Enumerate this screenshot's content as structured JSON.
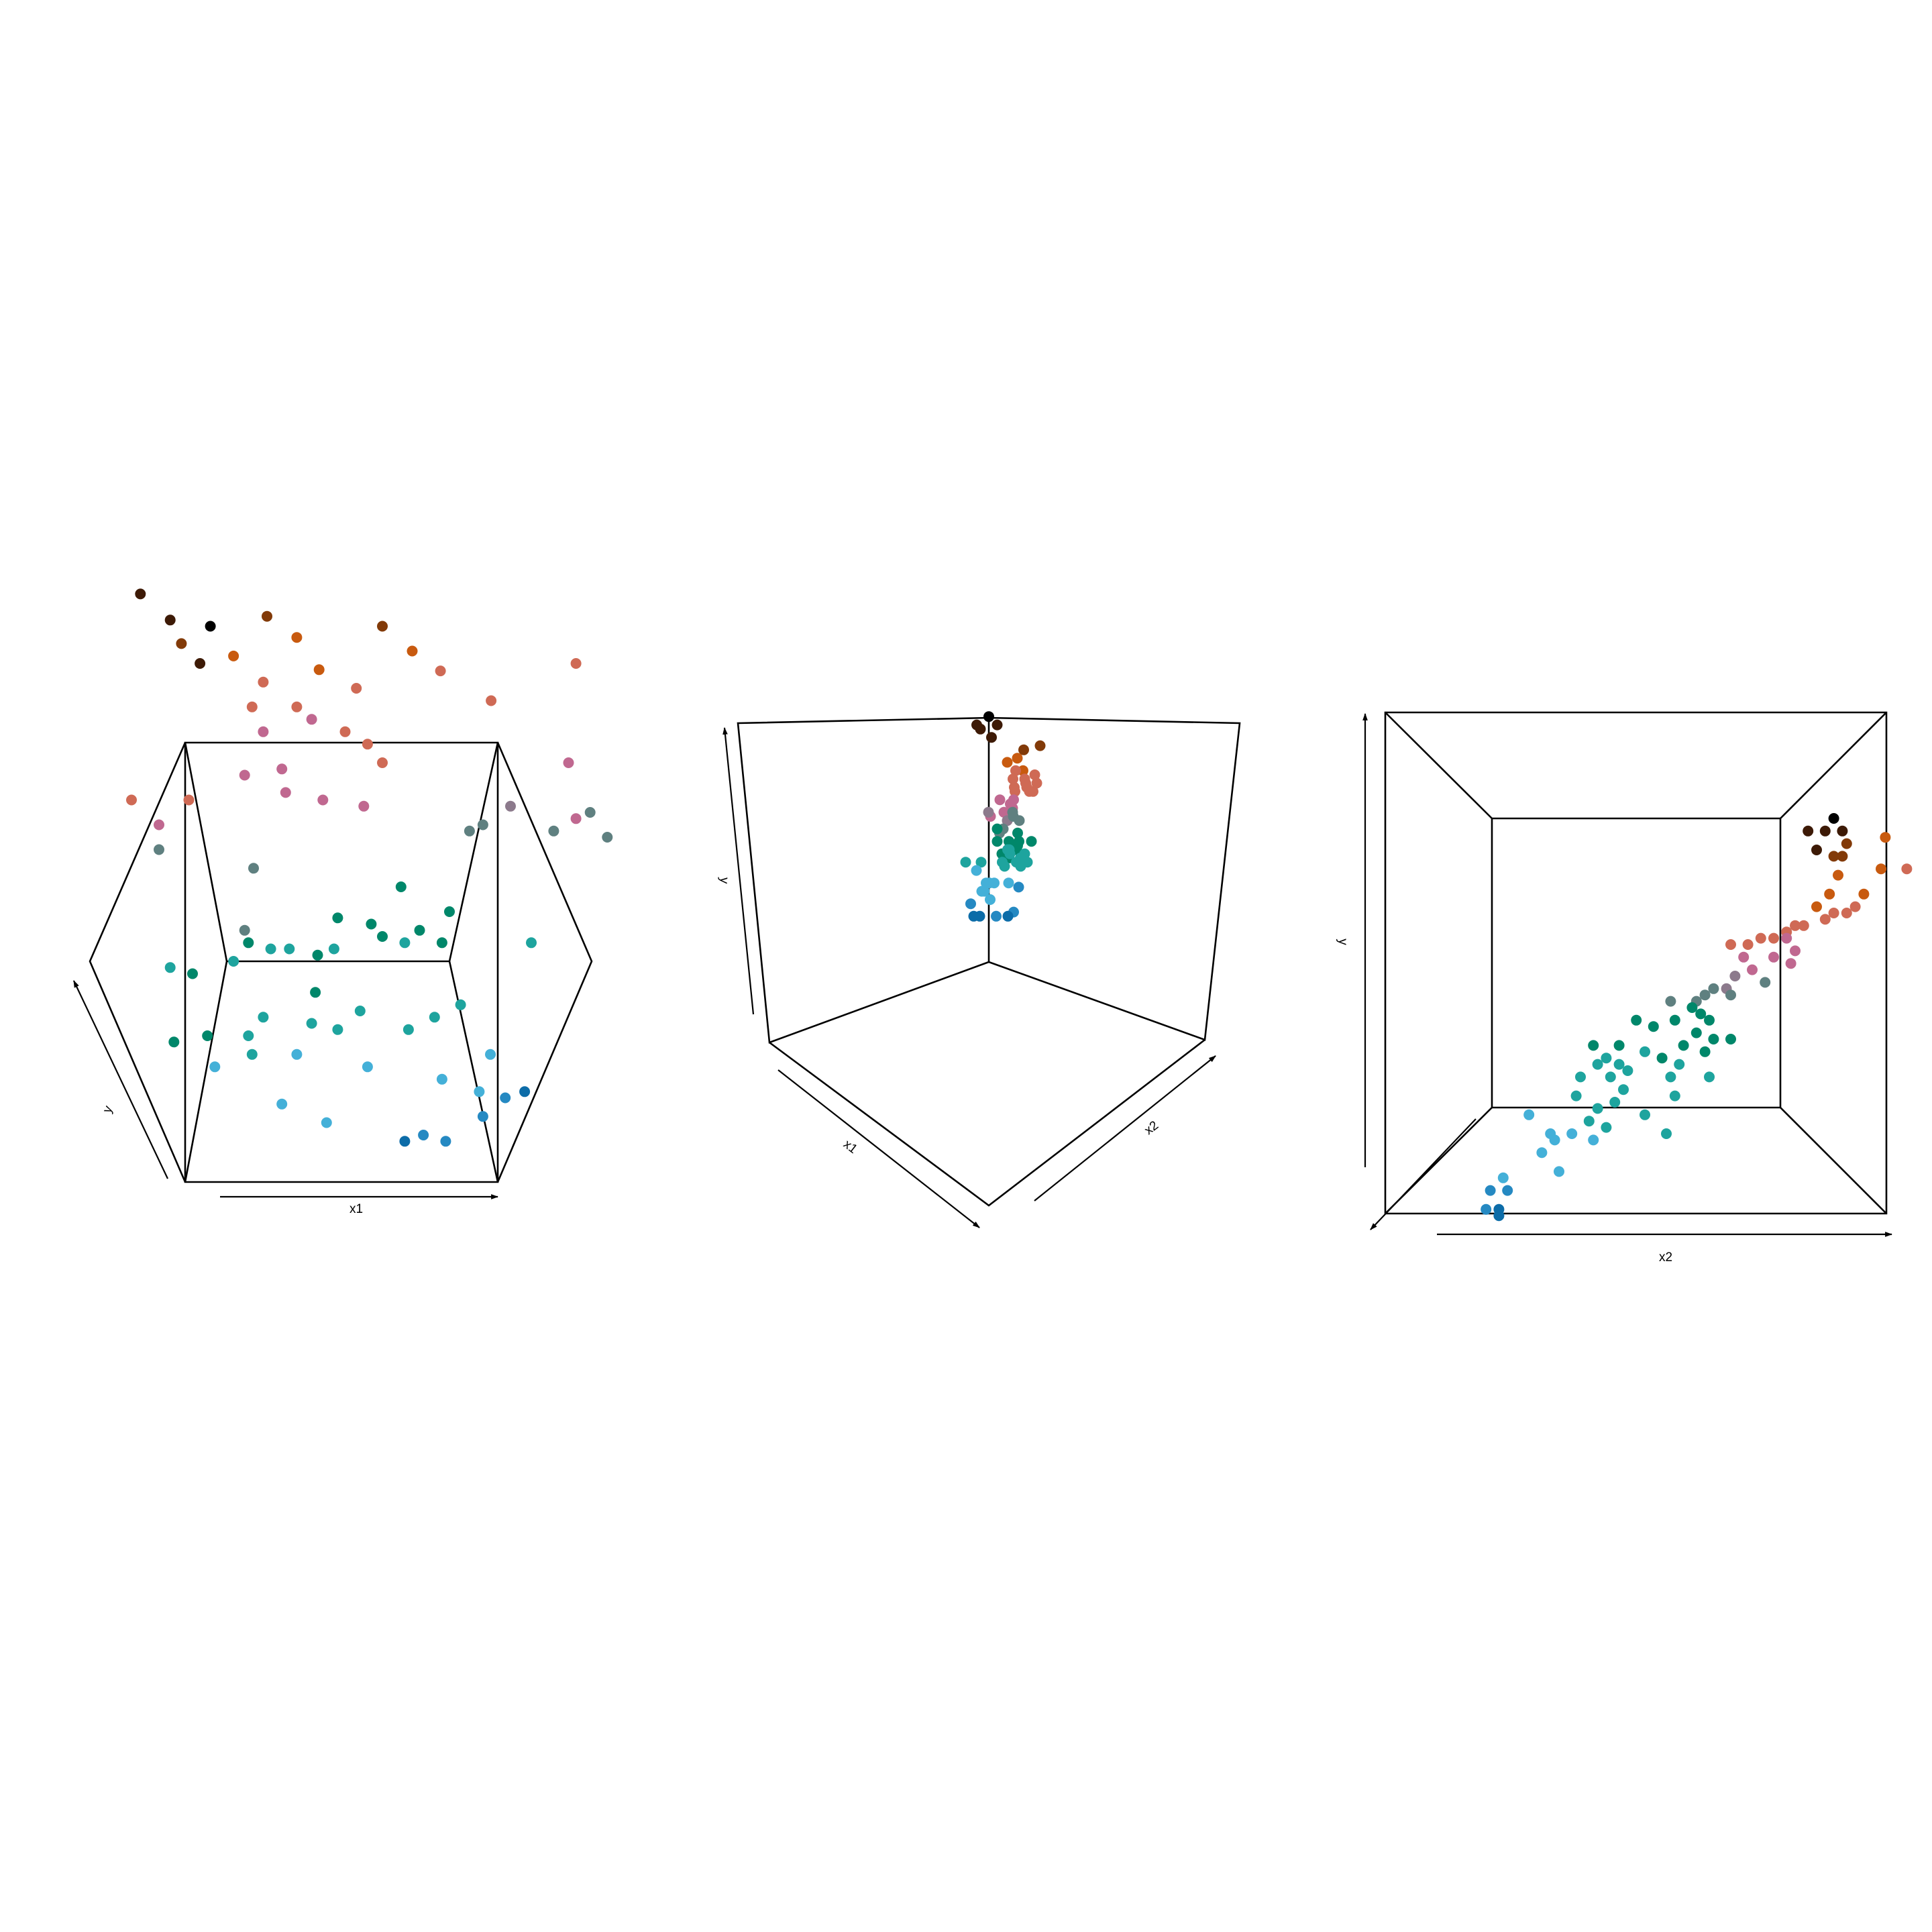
{
  "palette": {
    "1": "#000000",
    "2": "#3d1a06",
    "3": "#823a08",
    "4": "#c85a0f",
    "5": "#cf6a55",
    "6": "#c06890",
    "7": "#8c7a8c",
    "8": "#5f8080",
    "9": "#00876a",
    "10": "#1ea49e",
    "11": "#44b0d8",
    "12": "#2589c2",
    "13": "#0c6ca8"
  },
  "chart_data": [
    {
      "type": "scatter",
      "projection": "3d",
      "view": "front, x1 horizontal, y tilted",
      "axis_labels": {
        "x1": "x1",
        "y": "y"
      },
      "points": [
        [
          -2.7,
          2.96,
          2
        ],
        [
          -1.76,
          2.7,
          1
        ],
        [
          -2.3,
          2.75,
          2
        ],
        [
          -2.15,
          2.56,
          3
        ],
        [
          -1.9,
          2.4,
          2
        ],
        [
          -1.0,
          2.78,
          3
        ],
        [
          -0.6,
          2.61,
          4
        ],
        [
          -1.45,
          2.46,
          4
        ],
        [
          -1.05,
          2.25,
          5
        ],
        [
          -0.3,
          2.35,
          4
        ],
        [
          0.2,
          2.2,
          5
        ],
        [
          0.55,
          2.7,
          3
        ],
        [
          0.95,
          2.5,
          4
        ],
        [
          1.33,
          2.34,
          5
        ],
        [
          2.01,
          2.1,
          5
        ],
        [
          3.15,
          2.4,
          5
        ],
        [
          -1.2,
          2.05,
          5
        ],
        [
          -0.6,
          2.05,
          5
        ],
        [
          -1.05,
          1.85,
          6
        ],
        [
          -0.4,
          1.95,
          6
        ],
        [
          0.05,
          1.85,
          5
        ],
        [
          0.35,
          1.75,
          5
        ],
        [
          -0.8,
          1.55,
          6
        ],
        [
          -1.3,
          1.5,
          6
        ],
        [
          -2.05,
          1.3,
          5
        ],
        [
          -0.75,
          1.36,
          6
        ],
        [
          -0.25,
          1.3,
          6
        ],
        [
          0.3,
          1.25,
          6
        ],
        [
          0.55,
          1.6,
          5
        ],
        [
          -2.45,
          1.1,
          6
        ],
        [
          -2.82,
          1.3,
          5
        ],
        [
          2.27,
          1.25,
          7
        ],
        [
          1.72,
          1.05,
          8
        ],
        [
          3.05,
          1.6,
          6
        ],
        [
          1.9,
          1.1,
          8
        ],
        [
          2.85,
          1.05,
          8
        ],
        [
          3.34,
          1.2,
          8
        ],
        [
          3.57,
          1.0,
          8
        ],
        [
          3.15,
          1.15,
          6
        ],
        [
          -2.45,
          0.9,
          8
        ],
        [
          -1.18,
          0.75,
          8
        ],
        [
          0.8,
          0.6,
          9
        ],
        [
          -1.25,
          0.15,
          9
        ],
        [
          -0.05,
          0.35,
          9
        ],
        [
          0.4,
          0.3,
          9
        ],
        [
          -1.3,
          0.25,
          8
        ],
        [
          -0.32,
          0.05,
          9
        ],
        [
          0.55,
          0.2,
          9
        ],
        [
          1.05,
          0.25,
          9
        ],
        [
          1.45,
          0.4,
          9
        ],
        [
          -2.3,
          -0.05,
          10
        ],
        [
          -1.45,
          0.0,
          10
        ],
        [
          -0.95,
          0.1,
          10
        ],
        [
          -0.7,
          0.1,
          10
        ],
        [
          -0.1,
          0.1,
          10
        ],
        [
          0.85,
          0.15,
          10
        ],
        [
          1.35,
          0.15,
          9
        ],
        [
          2.55,
          0.15,
          10
        ],
        [
          -2.0,
          -0.1,
          9
        ],
        [
          -0.4,
          -0.5,
          10
        ],
        [
          0.25,
          -0.4,
          10
        ],
        [
          -1.05,
          -0.45,
          10
        ],
        [
          -0.35,
          -0.25,
          9
        ],
        [
          0.9,
          -0.55,
          10
        ],
        [
          1.25,
          -0.45,
          10
        ],
        [
          -2.25,
          -0.65,
          9
        ],
        [
          -1.8,
          -0.6,
          9
        ],
        [
          -1.2,
          -0.75,
          10
        ],
        [
          -1.25,
          -0.6,
          10
        ],
        [
          -0.05,
          -0.55,
          10
        ],
        [
          1.6,
          -0.35,
          10
        ],
        [
          2.0,
          -0.75,
          11
        ],
        [
          -1.7,
          -0.85,
          11
        ],
        [
          -0.6,
          -0.75,
          11
        ],
        [
          0.35,
          -0.85,
          11
        ],
        [
          1.35,
          -0.95,
          11
        ],
        [
          1.85,
          -1.05,
          11
        ],
        [
          -0.8,
          -1.15,
          11
        ],
        [
          -0.2,
          -1.3,
          11
        ],
        [
          2.2,
          -1.1,
          12
        ],
        [
          2.46,
          -1.05,
          13
        ],
        [
          0.85,
          -1.45,
          13
        ],
        [
          1.1,
          -1.4,
          12
        ],
        [
          1.4,
          -1.45,
          12
        ],
        [
          1.9,
          -1.25,
          12
        ]
      ]
    },
    {
      "type": "scatter",
      "projection": "3d",
      "view": "corner, x1 and x2 receding, y vertical",
      "axis_labels": {
        "x1": "x1",
        "x2": "x2",
        "y": "y"
      },
      "points": [
        [
          0,
          0,
          2.95,
          1
        ],
        [
          -0.1,
          0.05,
          2.85,
          2
        ],
        [
          0.05,
          -0.05,
          2.85,
          2
        ],
        [
          -0.05,
          0.05,
          2.8,
          2
        ],
        [
          0.1,
          0.05,
          2.7,
          2
        ],
        [
          0.6,
          0.1,
          2.55,
          3
        ],
        [
          0.95,
          0.2,
          2.6,
          3
        ],
        [
          0.45,
          0.05,
          2.45,
          4
        ],
        [
          0.25,
          0.0,
          2.4,
          4
        ],
        [
          1.1,
          0.5,
          2.3,
          4
        ],
        [
          0.3,
          -0.05,
          2.3,
          5
        ],
        [
          0.55,
          0.05,
          2.2,
          5
        ],
        [
          0.75,
          0.1,
          2.25,
          5
        ],
        [
          0.2,
          -0.1,
          2.2,
          5
        ],
        [
          0.45,
          -0.05,
          2.1,
          5
        ],
        [
          0.6,
          0.0,
          2.05,
          5
        ],
        [
          1.35,
          0.55,
          2.15,
          5
        ],
        [
          1.25,
          0.55,
          2.05,
          5
        ],
        [
          1.9,
          1.1,
          2.15,
          5
        ],
        [
          -0.8,
          -0.9,
          2.1,
          5
        ],
        [
          -0.6,
          -0.75,
          2.05,
          5
        ],
        [
          -1.0,
          -1.05,
          1.95,
          6
        ],
        [
          -0.55,
          -0.55,
          1.95,
          6
        ],
        [
          0.1,
          -0.15,
          1.9,
          6
        ],
        [
          0.45,
          0.1,
          1.85,
          6
        ],
        [
          1.35,
          0.9,
          1.8,
          6
        ],
        [
          1.55,
          1.2,
          1.75,
          6
        ],
        [
          1.65,
          1.3,
          1.8,
          7
        ],
        [
          1.8,
          1.3,
          1.55,
          8
        ],
        [
          0.95,
          0.55,
          1.7,
          7
        ],
        [
          1.15,
          0.75,
          1.6,
          8
        ],
        [
          -0.75,
          -0.85,
          1.75,
          8
        ],
        [
          -1.05,
          -1.15,
          1.7,
          8
        ],
        [
          -0.25,
          -0.45,
          1.8,
          8
        ],
        [
          0.05,
          -0.05,
          1.6,
          9
        ],
        [
          -0.5,
          -0.7,
          1.55,
          9
        ],
        [
          -0.8,
          -0.95,
          1.45,
          9
        ],
        [
          -1.65,
          -1.75,
          1.45,
          9
        ],
        [
          -1.2,
          -1.25,
          1.4,
          9
        ],
        [
          -1.0,
          -1.05,
          1.4,
          9
        ],
        [
          0.05,
          -0.05,
          1.45,
          9
        ],
        [
          0.55,
          0.15,
          1.4,
          9
        ],
        [
          0.75,
          0.3,
          1.35,
          9
        ],
        [
          0.95,
          0.45,
          1.35,
          9
        ],
        [
          1.1,
          0.65,
          1.45,
          9
        ],
        [
          0.4,
          0.1,
          1.3,
          9
        ],
        [
          0.75,
          0.45,
          1.3,
          9
        ],
        [
          -0.3,
          -0.45,
          1.25,
          9
        ],
        [
          -0.55,
          -0.65,
          1.35,
          10
        ],
        [
          -0.7,
          -0.75,
          1.35,
          10
        ],
        [
          -0.35,
          -0.5,
          1.3,
          10
        ],
        [
          -1.55,
          -1.6,
          1.3,
          10
        ],
        [
          -0.9,
          -1.0,
          1.2,
          10
        ],
        [
          -1.45,
          -1.55,
          1.2,
          10
        ],
        [
          -1.1,
          -1.2,
          1.25,
          10
        ],
        [
          -0.55,
          -0.6,
          1.15,
          10
        ],
        [
          -1.35,
          -1.4,
          1.15,
          10
        ],
        [
          -0.2,
          -0.3,
          1.2,
          10
        ],
        [
          0.15,
          0.2,
          1.2,
          10
        ],
        [
          0.85,
          0.8,
          1.1,
          11
        ],
        [
          1.15,
          1.15,
          1.2,
          10
        ],
        [
          -0.75,
          -0.8,
          0.95,
          11
        ],
        [
          -0.5,
          -0.45,
          0.95,
          11
        ],
        [
          -0.1,
          -0.05,
          0.95,
          11
        ],
        [
          0.2,
          0.15,
          0.95,
          11
        ],
        [
          -1.25,
          -1.3,
          0.9,
          12
        ],
        [
          -0.35,
          -0.2,
          0.85,
          11
        ],
        [
          0.45,
          0.4,
          0.85,
          11
        ],
        [
          -0.3,
          -0.25,
          0.75,
          11
        ],
        [
          0.2,
          0.35,
          0.7,
          12
        ],
        [
          -1.0,
          -1.05,
          0.6,
          12
        ],
        [
          -0.6,
          -0.55,
          0.55,
          12
        ],
        [
          -0.25,
          -0.1,
          0.55,
          13
        ],
        [
          0.05,
          0.2,
          0.55,
          13
        ],
        [
          -0.95,
          -0.95,
          0.55,
          13
        ]
      ]
    },
    {
      "type": "scatter",
      "projection": "3d",
      "view": "top, x2 horizontal, y vertical",
      "axis_labels": {
        "x2": "x2",
        "y": "y"
      },
      "points": [
        [
          2.45,
          2.5,
          1
        ],
        [
          2.15,
          2.4,
          2
        ],
        [
          2.35,
          2.4,
          2
        ],
        [
          2.55,
          2.4,
          2
        ],
        [
          2.25,
          2.25,
          2
        ],
        [
          2.45,
          2.2,
          3
        ],
        [
          2.6,
          2.3,
          3
        ],
        [
          2.55,
          2.2,
          3
        ],
        [
          3.05,
          2.35,
          4
        ],
        [
          3.3,
          2.1,
          5
        ],
        [
          3.0,
          2.1,
          4
        ],
        [
          2.5,
          2.05,
          4
        ],
        [
          2.4,
          1.9,
          4
        ],
        [
          2.8,
          1.9,
          4
        ],
        [
          2.25,
          1.8,
          4
        ],
        [
          2.7,
          1.8,
          5
        ],
        [
          2.6,
          1.75,
          5
        ],
        [
          2.45,
          1.75,
          5
        ],
        [
          2.35,
          1.7,
          5
        ],
        [
          2.0,
          1.65,
          5
        ],
        [
          2.1,
          1.65,
          5
        ],
        [
          1.9,
          1.6,
          5
        ],
        [
          1.75,
          1.55,
          5
        ],
        [
          1.6,
          1.55,
          5
        ],
        [
          1.45,
          1.5,
          5
        ],
        [
          1.9,
          1.55,
          6
        ],
        [
          2.0,
          1.45,
          6
        ],
        [
          1.4,
          1.4,
          6
        ],
        [
          1.25,
          1.5,
          5
        ],
        [
          1.75,
          1.4,
          6
        ],
        [
          1.95,
          1.35,
          6
        ],
        [
          1.5,
          1.3,
          6
        ],
        [
          1.3,
          1.25,
          7
        ],
        [
          1.2,
          1.15,
          7
        ],
        [
          1.65,
          1.2,
          8
        ],
        [
          1.25,
          1.1,
          8
        ],
        [
          1.05,
          1.15,
          8
        ],
        [
          0.85,
          1.05,
          8
        ],
        [
          0.95,
          1.1,
          8
        ],
        [
          0.55,
          1.05,
          8
        ],
        [
          0.8,
          1.0,
          9
        ],
        [
          0.9,
          0.95,
          9
        ],
        [
          0.6,
          0.9,
          9
        ],
        [
          1.0,
          0.9,
          9
        ],
        [
          0.15,
          0.9,
          9
        ],
        [
          0.35,
          0.85,
          9
        ],
        [
          0.85,
          0.8,
          9
        ],
        [
          1.05,
          0.75,
          9
        ],
        [
          1.25,
          0.75,
          9
        ],
        [
          0.7,
          0.7,
          9
        ],
        [
          0.95,
          0.65,
          9
        ],
        [
          0.45,
          0.6,
          9
        ],
        [
          -0.35,
          0.7,
          9
        ],
        [
          -0.05,
          0.7,
          9
        ],
        [
          0.25,
          0.65,
          10
        ],
        [
          -0.2,
          0.6,
          10
        ],
        [
          -0.05,
          0.55,
          10
        ],
        [
          0.65,
          0.55,
          10
        ],
        [
          0.55,
          0.45,
          10
        ],
        [
          -0.15,
          0.45,
          10
        ],
        [
          0.05,
          0.5,
          10
        ],
        [
          -0.3,
          0.55,
          10
        ],
        [
          -0.5,
          0.45,
          10
        ],
        [
          0.0,
          0.35,
          10
        ],
        [
          0.6,
          0.3,
          10
        ],
        [
          1.0,
          0.45,
          10
        ],
        [
          -0.3,
          0.2,
          10
        ],
        [
          -0.1,
          0.25,
          10
        ],
        [
          0.25,
          0.15,
          10
        ],
        [
          -0.55,
          0.3,
          10
        ],
        [
          0.5,
          0.0,
          10
        ],
        [
          -0.2,
          0.05,
          10
        ],
        [
          -0.4,
          0.1,
          10
        ],
        [
          -0.6,
          0.0,
          11
        ],
        [
          -0.85,
          0.0,
          11
        ],
        [
          -0.8,
          -0.05,
          11
        ],
        [
          -0.95,
          -0.15,
          11
        ],
        [
          -1.1,
          0.15,
          11
        ],
        [
          -0.35,
          -0.05,
          11
        ],
        [
          -1.4,
          -0.35,
          11
        ],
        [
          -0.75,
          -0.3,
          11
        ],
        [
          -1.55,
          -0.45,
          12
        ],
        [
          -1.35,
          -0.45,
          12
        ],
        [
          -1.6,
          -0.6,
          12
        ],
        [
          -1.45,
          -0.65,
          13
        ],
        [
          -1.45,
          -0.6,
          13
        ]
      ]
    }
  ]
}
